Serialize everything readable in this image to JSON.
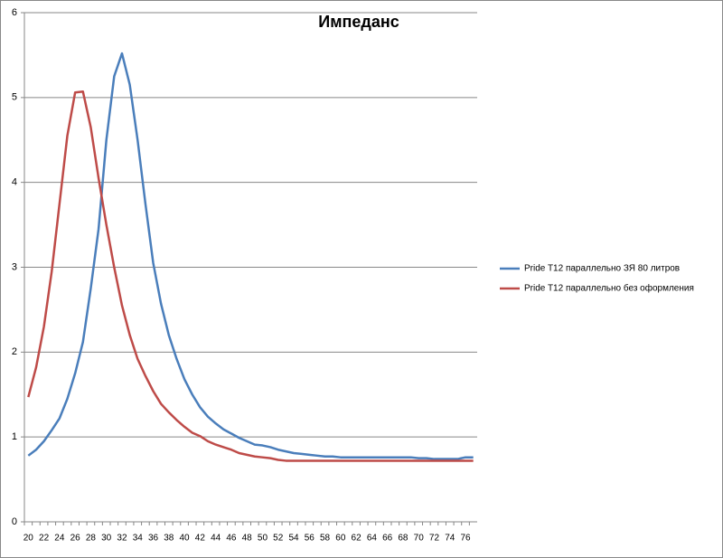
{
  "chart_data": {
    "type": "line",
    "title": "Импеданс",
    "categories": [
      20,
      null,
      22,
      null,
      24,
      null,
      26,
      null,
      28,
      null,
      30,
      null,
      32,
      null,
      34,
      null,
      36,
      null,
      38,
      null,
      40,
      null,
      42,
      null,
      44,
      null,
      46,
      null,
      48,
      null,
      50,
      null,
      52,
      null,
      54,
      null,
      56,
      null,
      58,
      null,
      60,
      null,
      62,
      null,
      64,
      null,
      66,
      null,
      68,
      null,
      70,
      null,
      72,
      null,
      74,
      null,
      76,
      null
    ],
    "series": [
      {
        "name": "Pride T12 параллельно  ЗЯ  80 литров",
        "color": "#4a7ebb",
        "values": [
          0.78,
          0.85,
          0.95,
          1.08,
          1.22,
          1.45,
          1.75,
          2.12,
          2.75,
          3.45,
          4.5,
          5.25,
          5.52,
          5.15,
          4.5,
          3.75,
          3.05,
          2.57,
          2.2,
          1.92,
          1.68,
          1.5,
          1.35,
          1.24,
          1.16,
          1.09,
          1.04,
          0.99,
          0.95,
          0.91,
          0.9,
          0.88,
          0.85,
          0.83,
          0.81,
          0.8,
          0.79,
          0.78,
          0.77,
          0.77,
          0.76,
          0.76,
          0.76,
          0.76,
          0.76,
          0.76,
          0.76,
          0.76,
          0.76,
          0.76,
          0.75,
          0.75,
          0.74,
          0.74,
          0.74,
          0.74,
          0.76,
          0.76
        ]
      },
      {
        "name": "Pride T12 параллельно  без оформления",
        "color": "#be4b48",
        "values": [
          1.47,
          1.82,
          2.3,
          2.95,
          3.75,
          4.55,
          5.06,
          5.07,
          4.65,
          4.05,
          3.5,
          3.0,
          2.55,
          2.2,
          1.92,
          1.72,
          1.54,
          1.39,
          1.29,
          1.2,
          1.12,
          1.05,
          1.01,
          0.95,
          0.91,
          0.88,
          0.85,
          0.81,
          0.79,
          0.77,
          0.76,
          0.75,
          0.73,
          0.72,
          0.72,
          0.72,
          0.72,
          0.72,
          0.72,
          0.72,
          0.72,
          0.72,
          0.72,
          0.72,
          0.72,
          0.72,
          0.72,
          0.72,
          0.72,
          0.72,
          0.72,
          0.72,
          0.72,
          0.72,
          0.72,
          0.72,
          0.72,
          0.72
        ]
      }
    ],
    "ylim": [
      0,
      6
    ],
    "yticks": [
      0,
      1,
      2,
      3,
      4,
      5,
      6
    ],
    "grid": true,
    "legend": "right"
  }
}
